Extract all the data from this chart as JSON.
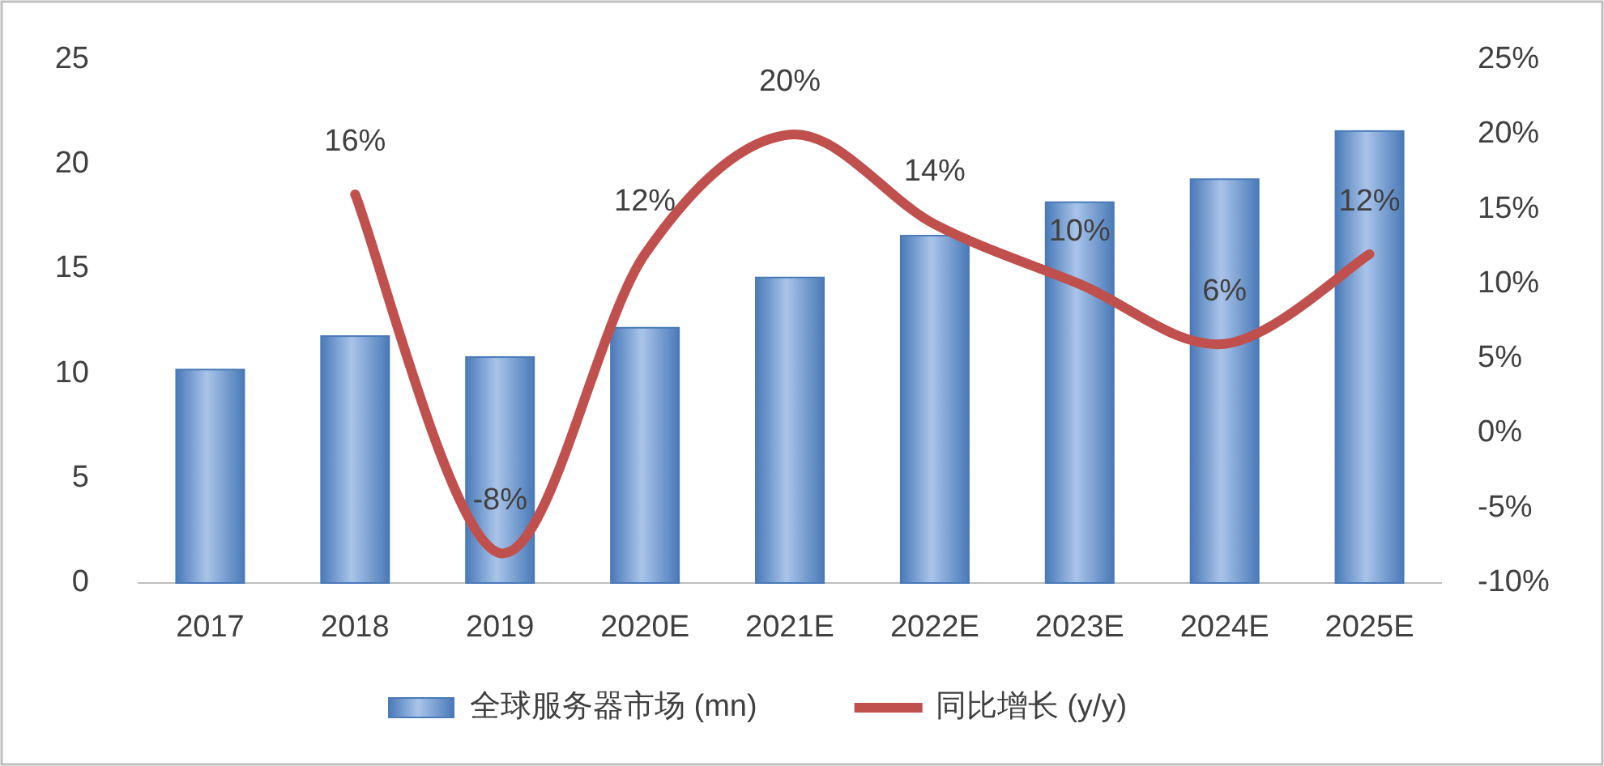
{
  "chart_data": {
    "type": "bar",
    "categories": [
      "2017",
      "2018",
      "2019",
      "2020E",
      "2021E",
      "2022E",
      "2023E",
      "2024E",
      "2025E"
    ],
    "series": [
      {
        "name": "全球服务器市场 (mn)",
        "color": "#4a7ab8",
        "values": [
          10.2,
          11.8,
          10.8,
          12.2,
          14.6,
          16.6,
          18.2,
          19.3,
          21.6
        ]
      },
      {
        "name": "同比增长 (y/y)",
        "type": "line",
        "axis": "y2",
        "color": "#c0504d",
        "values": [
          null,
          16,
          -8,
          12,
          20,
          14,
          10,
          6,
          12
        ],
        "value_labels": [
          null,
          "16%",
          "-8%",
          "12%",
          "20%",
          "14%",
          "10%",
          "6%",
          "12%"
        ]
      }
    ],
    "ylim": [
      0,
      25
    ],
    "yticks": [
      0,
      5,
      10,
      15,
      20,
      25
    ],
    "y2lim": [
      -10,
      25
    ],
    "y2ticks": [
      {
        "value": -10,
        "label": "-10%"
      },
      {
        "value": -5,
        "label": "-5%"
      },
      {
        "value": 0,
        "label": "0%"
      },
      {
        "value": 5,
        "label": "5%"
      },
      {
        "value": 10,
        "label": "10%"
      },
      {
        "value": 15,
        "label": "15%"
      },
      {
        "value": 20,
        "label": "20%"
      },
      {
        "value": 25,
        "label": "25%"
      }
    ],
    "grid": false,
    "legend": "bottom",
    "marker": "none",
    "line_style": "solid"
  }
}
